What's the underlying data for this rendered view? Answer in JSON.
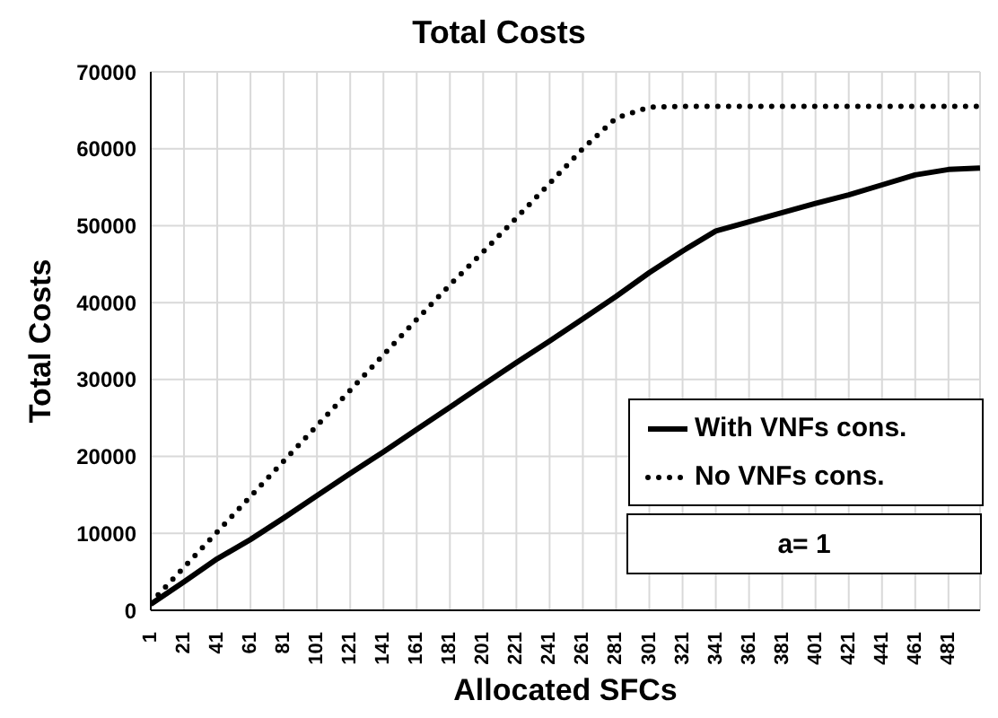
{
  "chart_data": {
    "type": "line",
    "title": "Total Costs",
    "xlabel": "Allocated SFCs",
    "ylabel": "Total Costs",
    "x": [
      1,
      21,
      41,
      61,
      81,
      101,
      121,
      141,
      161,
      181,
      201,
      221,
      241,
      261,
      281,
      301,
      321,
      341,
      361,
      381,
      401,
      421,
      441,
      461,
      481,
      500
    ],
    "series": [
      {
        "name": "With VNFs cons.",
        "color": "#000000",
        "line_style": "solid",
        "values": [
          800,
          3700,
          6700,
          9200,
          12000,
          14900,
          17800,
          20600,
          23500,
          26400,
          29300,
          32200,
          35000,
          37900,
          40800,
          43900,
          46700,
          49300,
          50500,
          51700,
          52900,
          54000,
          55300,
          56600,
          57300,
          57500
        ]
      },
      {
        "name": "No VNFs cons.",
        "color": "#000000",
        "line_style": "dotted",
        "values": [
          1000,
          5600,
          10200,
          14800,
          19400,
          24000,
          28600,
          33200,
          37800,
          42300,
          46600,
          51000,
          55500,
          60000,
          64000,
          65400,
          65500,
          65500,
          65500,
          65500,
          65500,
          65500,
          65500,
          65500,
          65500,
          65500
        ]
      }
    ],
    "xlim": [
      1,
      500
    ],
    "xticks": [
      1,
      21,
      41,
      61,
      81,
      101,
      121,
      141,
      161,
      181,
      201,
      221,
      241,
      261,
      281,
      301,
      321,
      341,
      361,
      381,
      401,
      421,
      441,
      461,
      481
    ],
    "ylim": [
      0,
      70000
    ],
    "yticks": [
      0,
      10000,
      20000,
      30000,
      40000,
      50000,
      60000,
      70000
    ],
    "grid": true,
    "legend": "bottom right",
    "marker": "none",
    "annotations": [
      "a= 1"
    ]
  }
}
